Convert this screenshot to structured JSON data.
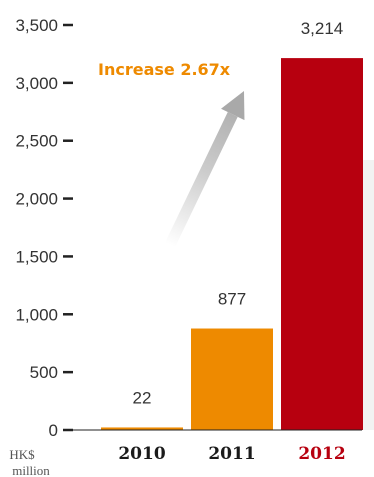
{
  "chart_data": {
    "type": "bar",
    "categories": [
      "2010",
      "2011",
      "2012"
    ],
    "values": [
      22,
      877,
      3214
    ],
    "value_labels": [
      "22",
      "877",
      "3,214"
    ],
    "y_ticks": [
      0,
      500,
      1000,
      1500,
      2000,
      2500,
      3000,
      3500
    ],
    "y_tick_labels": [
      "0",
      "500",
      "1,000",
      "1,500",
      "2,000",
      "2,500",
      "3,000",
      "3,500"
    ],
    "ylim": [
      0,
      3500
    ],
    "unit_label_line1": "HK$",
    "unit_label_line2": "million",
    "annotation": "Increase 2.67x",
    "grid": false,
    "colors": {
      "2010": "#ee8a00",
      "2011": "#ee8a00",
      "2012": "#b7000f",
      "annotation": "#ee8a00",
      "arrow": "#a9a9a9",
      "axis": "#222222",
      "category_default": "#1a1a1a",
      "category_highlight": "#b7000f"
    },
    "highlight_category": "2012"
  }
}
